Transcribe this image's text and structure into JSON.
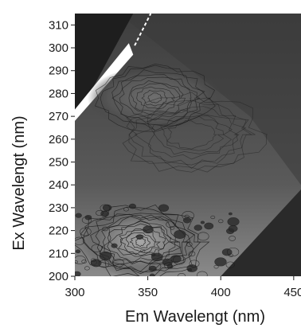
{
  "chart_data": {
    "type": "heatmap",
    "title": "",
    "xlabel": "Em Wavelengt (nm)",
    "ylabel": "Ex Wavelengt (nm)",
    "xlim": [
      300,
      455
    ],
    "ylim": [
      200,
      315
    ],
    "x_ticks": [
      300,
      350,
      400,
      450
    ],
    "x_tick_labels": [
      "300",
      "350",
      "400",
      "450"
    ],
    "y_ticks": [
      200,
      210,
      220,
      230,
      240,
      250,
      260,
      270,
      280,
      290,
      300,
      310
    ],
    "y_tick_labels": [
      "200",
      "210",
      "220",
      "230",
      "240",
      "250",
      "260",
      "270",
      "280",
      "290",
      "300",
      "310"
    ],
    "colormap": "grayscale",
    "colors": {
      "background": "#3a3a3a",
      "low_intensity": "#2a2a2a",
      "mid_intensity": "#6e6e6e",
      "high_intensity": "#9a9a9a",
      "rayleigh_scatter_band": "#ffffff",
      "contour_line": "#1c1c1c"
    },
    "features": [
      {
        "kind": "rayleigh-scatter-band",
        "em_start": 300,
        "em_end": 340,
        "ex_start": 268,
        "ex_end": 315
      },
      {
        "kind": "second-order-scatter",
        "em_start": 400,
        "em_end": 455,
        "ex_start": 200,
        "ex_end": 228
      },
      {
        "kind": "peak-region",
        "em_center": 345,
        "ex_center": 215
      },
      {
        "kind": "peak-region",
        "em_center": 355,
        "ex_center": 278
      }
    ]
  }
}
